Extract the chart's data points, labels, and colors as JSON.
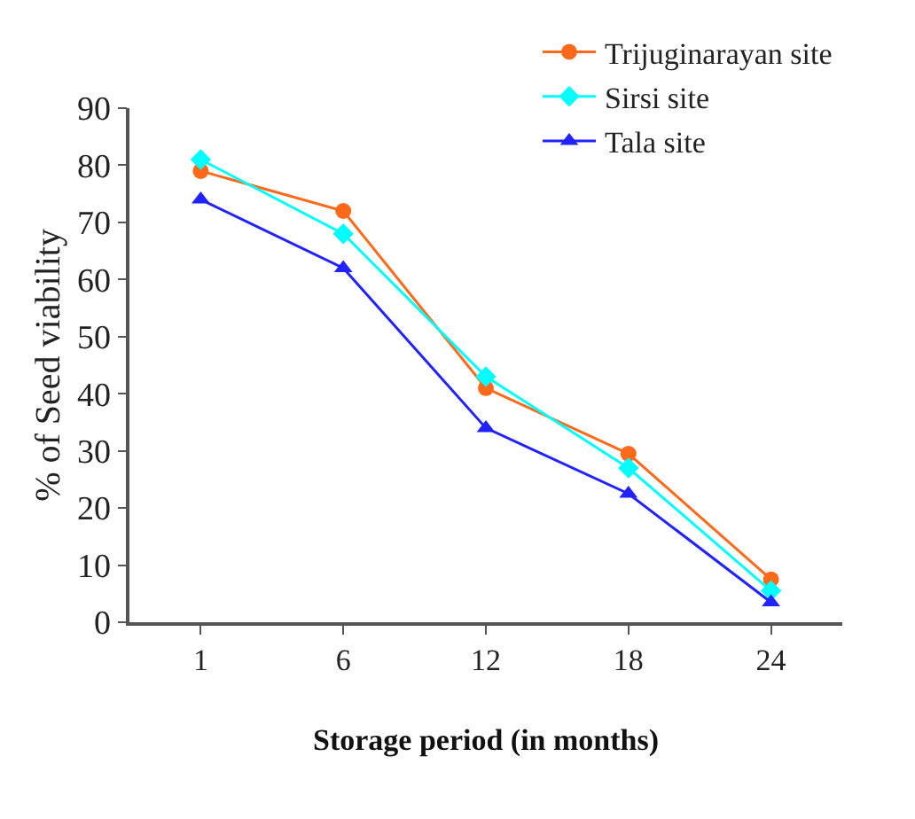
{
  "chart_data": {
    "type": "line",
    "xlabel": "Storage period (in months)",
    "ylabel": "% of Seed viability",
    "categories": [
      "1",
      "6",
      "12",
      "18",
      "24"
    ],
    "ylim": [
      0,
      90
    ],
    "yticks": [
      0,
      10,
      20,
      30,
      40,
      50,
      60,
      70,
      80,
      90
    ],
    "legend": "top right",
    "series": [
      {
        "name": "Trijuginarayan site",
        "color": "#ff6a1a",
        "marker": "circle",
        "values": [
          79,
          72,
          41,
          29.5,
          7.5
        ]
      },
      {
        "name": "Sirsi site",
        "color": "#00ffff",
        "marker": "diamond",
        "values": [
          81,
          68,
          43,
          27,
          5.5
        ]
      },
      {
        "name": "Tala site",
        "color": "#2222ff",
        "marker": "triangle",
        "values": [
          74,
          62,
          34,
          22.5,
          3.5
        ]
      }
    ]
  }
}
